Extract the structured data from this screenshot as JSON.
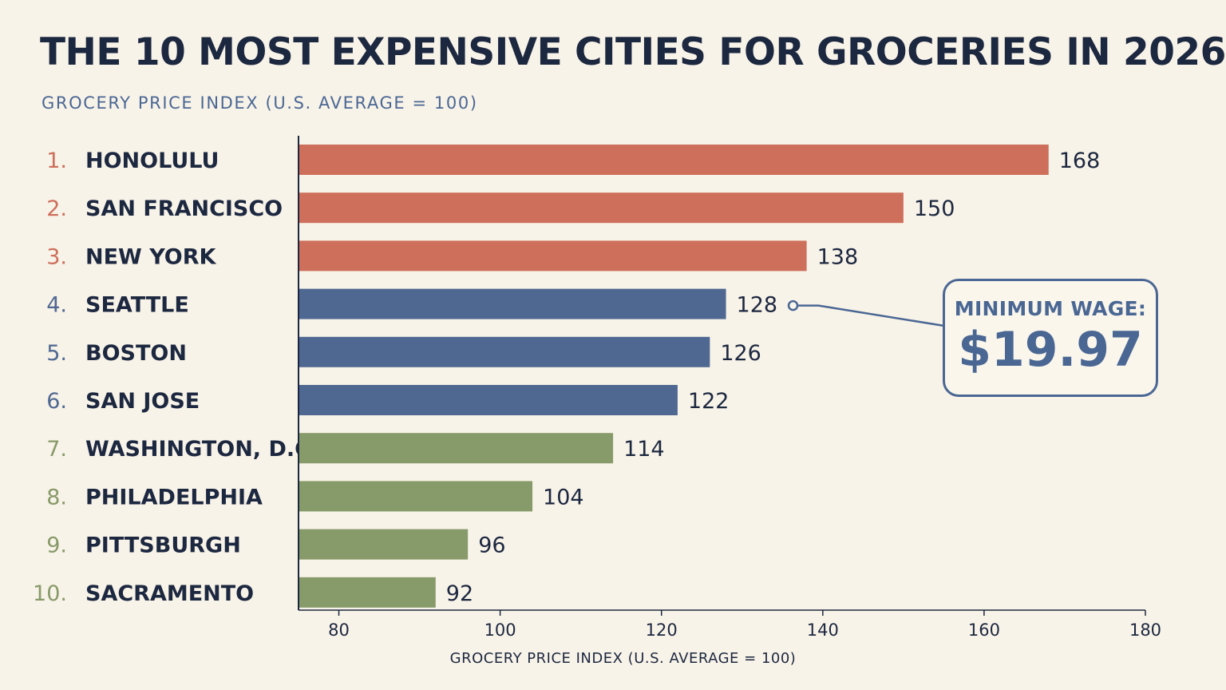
{
  "header": {
    "title": "THE 10 MOST EXPENSIVE CITIES FOR GROCERIES IN 2026",
    "subtitle": "GROCERY PRICE INDEX (U.S. AVERAGE = 100)"
  },
  "callout": {
    "label": "MINIMUM WAGE:",
    "value": "$19.97",
    "points_to_city": "SEATTLE"
  },
  "colors": {
    "tier1": "#cd6f5b",
    "tier2": "#4f6892",
    "tier3": "#879a69",
    "text": "#1c2740",
    "callout": "#4a6794"
  },
  "chart_data": {
    "type": "bar",
    "orientation": "horizontal",
    "title": "THE 10 MOST EXPENSIVE CITIES FOR GROCERIES IN 2026",
    "subtitle": "GROCERY PRICE INDEX (U.S. AVERAGE = 100)",
    "xlabel": "GROCERY PRICE INDEX (U.S. AVERAGE = 100)",
    "ylabel": "",
    "xlim": [
      75,
      180
    ],
    "xticks": [
      80,
      100,
      120,
      140,
      160,
      180
    ],
    "grid": false,
    "legend": "none",
    "ranks": [
      "1.",
      "2.",
      "3.",
      "4.",
      "5.",
      "6.",
      "7.",
      "8.",
      "9.",
      "10."
    ],
    "categories": [
      "HONOLULU",
      "SAN FRANCISCO",
      "NEW YORK",
      "SEATTLE",
      "BOSTON",
      "SAN JOSE",
      "WASHINGTON, D.C.",
      "PHILADELPHIA",
      "PITTSBURGH",
      "SACRAMENTO"
    ],
    "values": [
      168,
      150,
      138,
      128,
      126,
      122,
      114,
      104,
      96,
      92
    ],
    "value_labels": [
      "168",
      "150",
      "138",
      "128",
      "126",
      "122",
      "114",
      "104",
      "96",
      "92"
    ],
    "tiers": [
      "tier1",
      "tier1",
      "tier1",
      "tier2",
      "tier2",
      "tier2",
      "tier3",
      "tier3",
      "tier3",
      "tier3"
    ]
  }
}
